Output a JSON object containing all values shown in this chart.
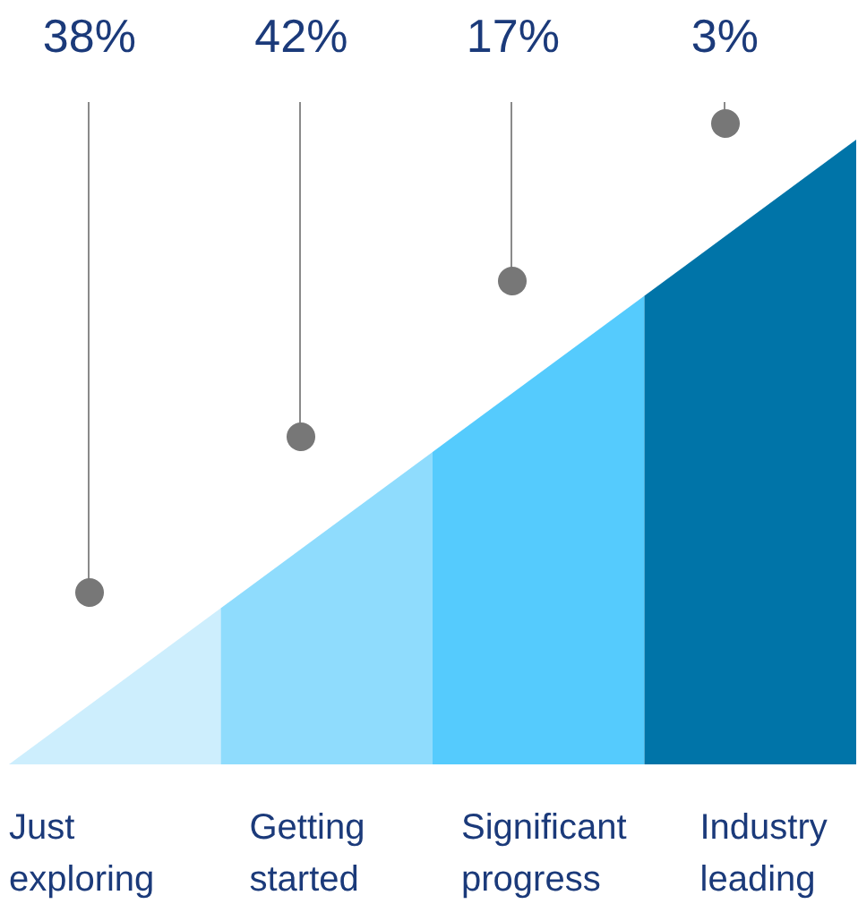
{
  "chart_data": {
    "type": "other",
    "categories": [
      "Just exploring",
      "Getting started",
      "Significant progress",
      "Industry leading"
    ],
    "values": [
      38,
      42,
      17,
      3
    ],
    "value_labels": [
      "38%",
      "42%",
      "17%",
      "3%"
    ],
    "colors": [
      "#cdeefd",
      "#8fdcfd",
      "#55cbfd",
      "#0074a8"
    ]
  }
}
